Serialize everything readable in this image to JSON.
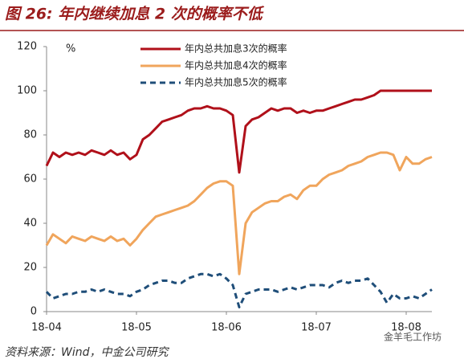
{
  "chart_data": {
    "type": "line",
    "title": "图 26: 年内继续加息 2 次的概率不低",
    "y_unit": "%",
    "source": "资料来源：Wind，中金公司研究",
    "watermark": "金羊毛工作坊",
    "categories": [
      "18-04",
      null,
      null,
      null,
      null,
      null,
      null,
      null,
      null,
      null,
      null,
      null,
      null,
      null,
      "18-05",
      null,
      null,
      null,
      null,
      null,
      null,
      null,
      null,
      null,
      null,
      null,
      null,
      null,
      "18-06",
      null,
      null,
      null,
      null,
      null,
      null,
      null,
      null,
      null,
      null,
      null,
      null,
      null,
      "18-07",
      null,
      null,
      null,
      null,
      null,
      null,
      null,
      null,
      null,
      null,
      null,
      null,
      null,
      "18-08",
      null,
      null,
      null,
      null
    ],
    "ylim": [
      0,
      120
    ],
    "yticks": [
      0,
      20,
      40,
      60,
      80,
      100,
      120
    ],
    "legend": "upper center",
    "series": [
      {
        "name": "年内总共加息3次的概率",
        "color": "#b0101a",
        "style": "solid",
        "values": [
          66,
          72,
          70,
          72,
          71,
          72,
          71,
          73,
          72,
          71,
          73,
          71,
          72,
          69,
          71,
          78,
          80,
          83,
          86,
          87,
          88,
          89,
          91,
          92,
          92,
          93,
          92,
          92,
          91,
          89,
          63,
          84,
          87,
          88,
          90,
          92,
          91,
          92,
          92,
          90,
          91,
          90,
          91,
          91,
          92,
          93,
          94,
          95,
          96,
          96,
          97,
          98,
          100,
          100,
          100,
          100,
          100,
          100,
          100,
          100,
          100
        ]
      },
      {
        "name": "年内总共加息4次的概率",
        "color": "#f0a55c",
        "style": "solid",
        "values": [
          30,
          35,
          33,
          31,
          34,
          33,
          32,
          34,
          33,
          32,
          34,
          32,
          33,
          30,
          33,
          37,
          40,
          43,
          44,
          45,
          46,
          47,
          48,
          50,
          53,
          56,
          58,
          59,
          59,
          57,
          17,
          40,
          45,
          47,
          49,
          50,
          50,
          52,
          53,
          51,
          55,
          57,
          57,
          60,
          62,
          63,
          64,
          66,
          67,
          68,
          70,
          71,
          72,
          72,
          71,
          64,
          70,
          67,
          67,
          69,
          70
        ]
      },
      {
        "name": "年内总共加息5次的概率",
        "color": "#1f4e79",
        "style": "dashed",
        "values": [
          9,
          6,
          7,
          8,
          8,
          9,
          9,
          10,
          9,
          10,
          9,
          8,
          8,
          7,
          9,
          10,
          12,
          13,
          14,
          14,
          13,
          13,
          15,
          16,
          17,
          17,
          16,
          17,
          15,
          12,
          2,
          8,
          9,
          10,
          10,
          10,
          9,
          10,
          11,
          10,
          11,
          12,
          12,
          12,
          11,
          13,
          14,
          13,
          14,
          14,
          15,
          12,
          9,
          4,
          8,
          6,
          6,
          7,
          6,
          8,
          10
        ]
      }
    ]
  }
}
